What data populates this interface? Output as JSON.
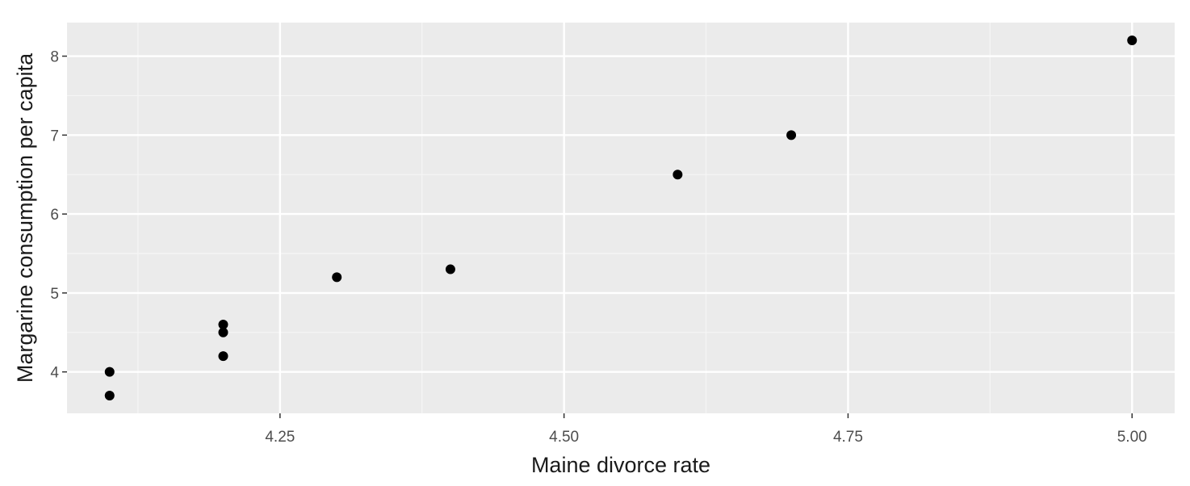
{
  "chart_data": {
    "type": "scatter",
    "title": "",
    "xlabel": "Maine divorce rate",
    "ylabel": "Margarine consumption per capita",
    "xlim": [
      4.0625,
      5.0375
    ],
    "ylim": [
      3.475,
      8.425
    ],
    "x_ticks": [
      4.25,
      4.5,
      4.75,
      5.0
    ],
    "x_tick_labels": [
      "4.25",
      "4.50",
      "4.75",
      "5.00"
    ],
    "x_minor_ticks": [
      4.125,
      4.375,
      4.625,
      4.875
    ],
    "y_ticks": [
      4,
      5,
      6,
      7,
      8
    ],
    "y_tick_labels": [
      "4",
      "5",
      "6",
      "7",
      "8"
    ],
    "y_minor_ticks": [
      4.5,
      5.5,
      6.5,
      7.5
    ],
    "grid": true,
    "legend": "none",
    "colors": {
      "panel_background": "#ebebeb",
      "grid_major": "#ffffff",
      "grid_minor": "#f5f5f5",
      "point": "#000000",
      "tick_mark": "#333333"
    },
    "points": [
      {
        "x": 5.0,
        "y": 8.2
      },
      {
        "x": 4.7,
        "y": 7.0
      },
      {
        "x": 4.6,
        "y": 6.5
      },
      {
        "x": 4.4,
        "y": 5.3
      },
      {
        "x": 4.3,
        "y": 5.2
      },
      {
        "x": 4.2,
        "y": 4.6
      },
      {
        "x": 4.2,
        "y": 4.5
      },
      {
        "x": 4.2,
        "y": 4.2
      },
      {
        "x": 4.1,
        "y": 4.0
      },
      {
        "x": 4.1,
        "y": 3.7
      }
    ]
  }
}
